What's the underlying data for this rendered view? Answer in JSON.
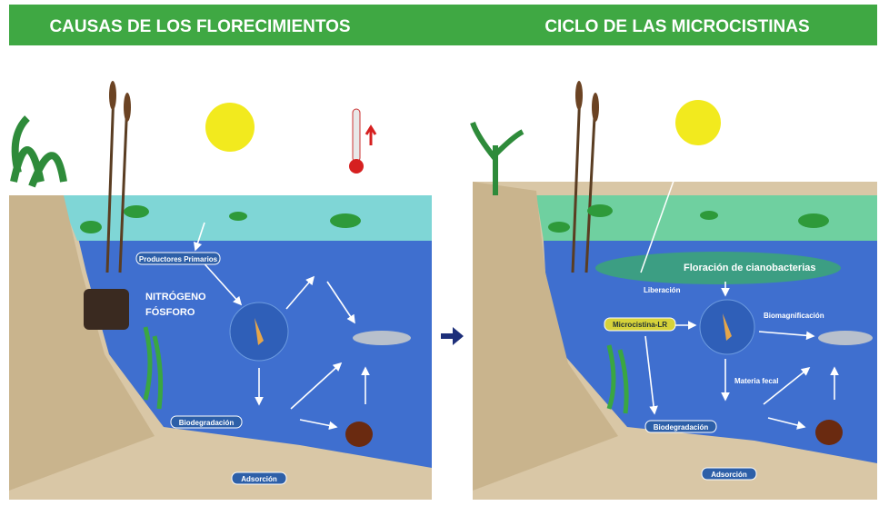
{
  "header": {
    "left_title": "CAUSAS DE LOS FLORECIMIENTOS",
    "right_title": "CICLO DE LAS MICROCISTINAS"
  },
  "left": {
    "labels": [
      "Productores Primarios",
      "NITRÓGENO",
      "FÓSFORO",
      "Biodegradación",
      "Adsorción"
    ]
  },
  "right": {
    "labels": [
      "Floración de cianobacterias",
      "Liberación",
      "Microcistina-LR",
      "Biomagnificación",
      "Materia fecal",
      "Biodegradación",
      "Adsorción"
    ]
  }
}
